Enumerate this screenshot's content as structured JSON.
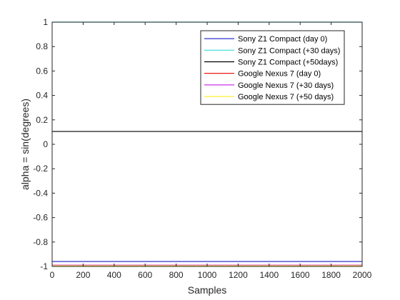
{
  "chart_data": {
    "type": "line",
    "title": "",
    "xlabel": "Samples",
    "ylabel": "alpha = sin(degrees)",
    "xlim": [
      0,
      2000
    ],
    "ylim": [
      -1,
      1
    ],
    "xticks": [
      0,
      200,
      400,
      600,
      800,
      1000,
      1200,
      1400,
      1600,
      1800,
      2000
    ],
    "yticks": [
      1,
      0.8,
      0.6,
      0.4,
      0.2,
      0,
      -0.2,
      -0.4,
      -0.6,
      -0.8,
      -1
    ],
    "xtick_labels": [
      "0",
      "200",
      "400",
      "600",
      "800",
      "1000",
      "1200",
      "1400",
      "1600",
      "1800",
      "2000"
    ],
    "ytick_labels": [
      "1",
      "0.8",
      "0.6",
      "0.4",
      "0.2",
      "0",
      "-0.2",
      "-0.4",
      "-0.6",
      "-0.8",
      "-1"
    ],
    "grid": false,
    "legend_position": "top-right",
    "series": [
      {
        "name": "Sony Z1 Compact (day 0)",
        "color": "#3333cc",
        "x": [
          0,
          2000
        ],
        "y": [
          -0.96,
          -0.96
        ]
      },
      {
        "name": "Sony Z1 Compact (+30 days)",
        "color": "#33dddd",
        "x": [
          0,
          2000
        ],
        "y": [
          1.0,
          1.0
        ]
      },
      {
        "name": "Sony Z1 Compact (+50days)",
        "color": "#000000",
        "x": [
          0,
          2000
        ],
        "y": [
          0.105,
          0.105
        ]
      },
      {
        "name": "Google Nexus 7 (day 0)",
        "color": "#e60000",
        "x": [
          0,
          2000
        ],
        "y": [
          -0.99,
          -0.99
        ]
      },
      {
        "name": "Google Nexus 7 (+30 days)",
        "color": "#cc33ee",
        "x": [
          0,
          2000
        ],
        "y": [
          -0.99,
          -0.99
        ]
      },
      {
        "name": "Google Nexus 7 (+50 days)",
        "color": "#ffee33",
        "x": [
          0,
          2000
        ],
        "y": [
          -0.995,
          -0.995
        ]
      }
    ]
  }
}
